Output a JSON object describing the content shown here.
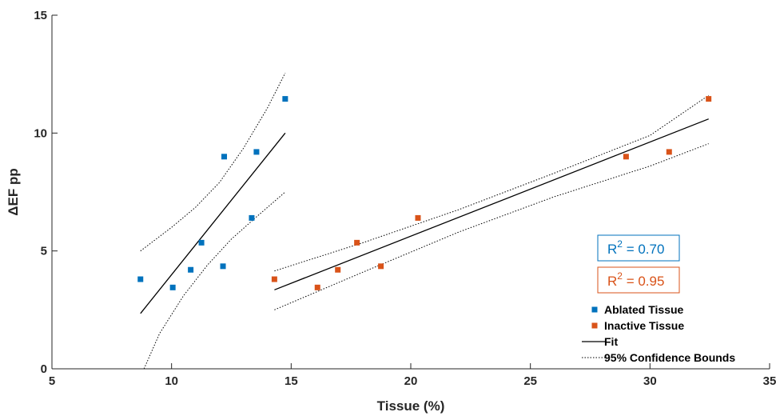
{
  "chart_data": {
    "type": "scatter",
    "xlabel": "Tissue (%)",
    "ylabel": "ΔEF pp",
    "xlim": [
      5,
      35
    ],
    "ylim": [
      0,
      15
    ],
    "xticks": [
      5,
      10,
      15,
      20,
      25,
      30,
      35
    ],
    "yticks": [
      0,
      5,
      10,
      15
    ],
    "xtick_labels": [
      "5",
      "10",
      "15",
      "20",
      "25",
      "30",
      "35"
    ],
    "ytick_labels": [
      "0",
      "5",
      "10",
      "15"
    ],
    "grid": false,
    "legend_position": "bottom-right",
    "series": [
      {
        "name": "Ablated Tissue",
        "color": "#0072BD",
        "marker": "square",
        "points": [
          {
            "x": 8.7,
            "y": 3.8
          },
          {
            "x": 10.05,
            "y": 3.45
          },
          {
            "x": 10.8,
            "y": 4.2
          },
          {
            "x": 11.25,
            "y": 5.35
          },
          {
            "x": 12.15,
            "y": 4.35
          },
          {
            "x": 12.2,
            "y": 9.0
          },
          {
            "x": 13.35,
            "y": 6.4
          },
          {
            "x": 13.55,
            "y": 9.2
          },
          {
            "x": 14.75,
            "y": 11.45
          }
        ],
        "fit": [
          [
            8.7,
            2.35
          ],
          [
            14.75,
            10.0
          ]
        ],
        "upper_bound": [
          [
            8.7,
            5.0
          ],
          [
            10.0,
            6.0
          ],
          [
            11.0,
            6.85
          ],
          [
            12.0,
            7.9
          ],
          [
            13.0,
            9.35
          ],
          [
            14.0,
            11.05
          ],
          [
            14.75,
            12.55
          ]
        ],
        "lower_bound": [
          [
            8.85,
            0.0
          ],
          [
            9.5,
            1.5
          ],
          [
            10.5,
            3.1
          ],
          [
            11.5,
            4.4
          ],
          [
            12.5,
            5.5
          ],
          [
            13.5,
            6.4
          ],
          [
            14.75,
            7.5
          ]
        ],
        "r2_label": "R",
        "r2_exp": "2",
        "r2_value": " = 0.70"
      },
      {
        "name": "Inactive Tissue",
        "color": "#D95319",
        "marker": "square",
        "points": [
          {
            "x": 14.3,
            "y": 3.8
          },
          {
            "x": 16.1,
            "y": 3.45
          },
          {
            "x": 16.95,
            "y": 4.2
          },
          {
            "x": 17.75,
            "y": 5.35
          },
          {
            "x": 18.75,
            "y": 4.35
          },
          {
            "x": 20.3,
            "y": 6.4
          },
          {
            "x": 29.0,
            "y": 9.0
          },
          {
            "x": 30.8,
            "y": 9.2
          },
          {
            "x": 32.45,
            "y": 11.45
          }
        ],
        "fit": [
          [
            14.3,
            3.35
          ],
          [
            32.45,
            10.6
          ]
        ],
        "upper_bound": [
          [
            14.3,
            4.15
          ],
          [
            18.0,
            5.35
          ],
          [
            22.0,
            6.75
          ],
          [
            26.0,
            8.3
          ],
          [
            30.0,
            9.9
          ],
          [
            32.45,
            11.6
          ]
        ],
        "lower_bound": [
          [
            14.3,
            2.5
          ],
          [
            18.0,
            4.1
          ],
          [
            22.0,
            5.8
          ],
          [
            26.0,
            7.3
          ],
          [
            30.0,
            8.6
          ],
          [
            32.45,
            9.55
          ]
        ],
        "r2_label": "R",
        "r2_exp": "2",
        "r2_value": " = 0.95"
      }
    ],
    "legend": [
      {
        "label": "Ablated Tissue",
        "kind": "marker",
        "color": "#0072BD"
      },
      {
        "label": "Inactive Tissue",
        "kind": "marker",
        "color": "#D95319"
      },
      {
        "label": "Fit",
        "kind": "line",
        "color": "#000000"
      },
      {
        "label": "95% Confidence Bounds",
        "kind": "dotted",
        "color": "#000000"
      }
    ]
  }
}
